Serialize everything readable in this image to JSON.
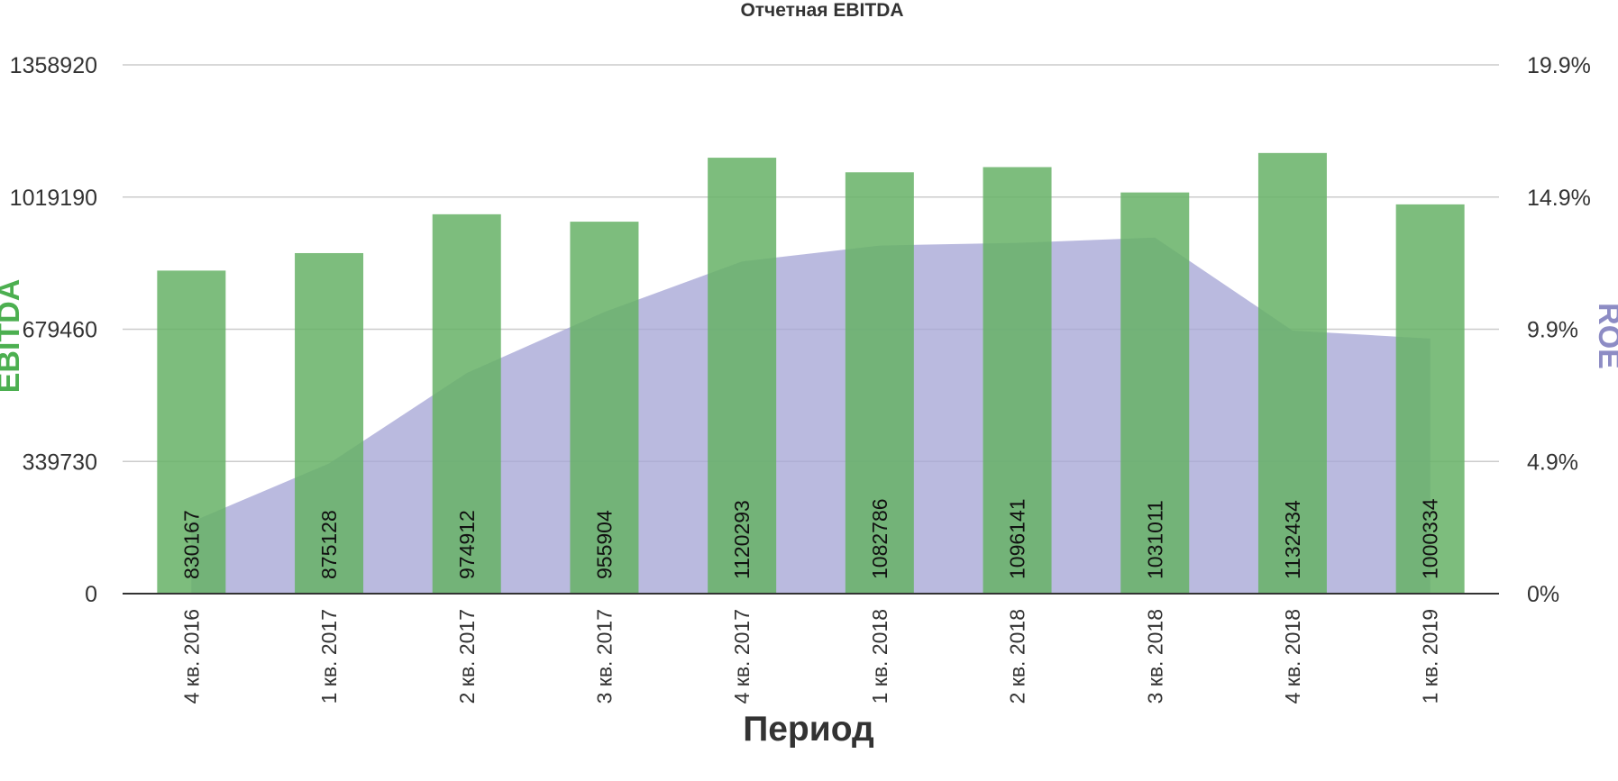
{
  "chart_data": {
    "type": "bar",
    "title": "Отчетная EBITDA",
    "xlabel": "Период",
    "ylabel": "EBITDA",
    "y2label": "ROE",
    "categories": [
      "4 кв. 2016",
      "1 кв. 2017",
      "2 кв. 2017",
      "3 кв. 2017",
      "4 кв. 2017",
      "1 кв. 2018",
      "2 кв. 2018",
      "3 кв. 2018",
      "4 кв. 2018",
      "1 кв. 2019"
    ],
    "series": [
      {
        "name": "EBITDA",
        "chart_type": "bar",
        "axis": "left",
        "color": "#66b266",
        "values": [
          830167,
          875128,
          974912,
          955904,
          1120293,
          1082786,
          1096141,
          1031011,
          1132434,
          1000334
        ],
        "data_labels": [
          "830167",
          "875128",
          "974912",
          "955904",
          "1120293",
          "1082786",
          "1096141",
          "1031011",
          "1132434",
          "1000334"
        ]
      },
      {
        "name": "ROE",
        "chart_type": "area",
        "axis": "right",
        "color": "#a7a6d6",
        "values": [
          0.027,
          0.049,
          0.083,
          0.106,
          0.125,
          0.131,
          0.132,
          0.134,
          0.099,
          0.096
        ]
      }
    ],
    "ylim": [
      0,
      1358920
    ],
    "yticks": [
      "0",
      "339730",
      "679460",
      "1019190",
      "1358920"
    ],
    "y2lim": [
      0,
      0.199
    ],
    "y2ticks": [
      "0%",
      "4.9%",
      "9.9%",
      "14.9%",
      "19.9%"
    ],
    "grid": true,
    "legend": "none"
  }
}
